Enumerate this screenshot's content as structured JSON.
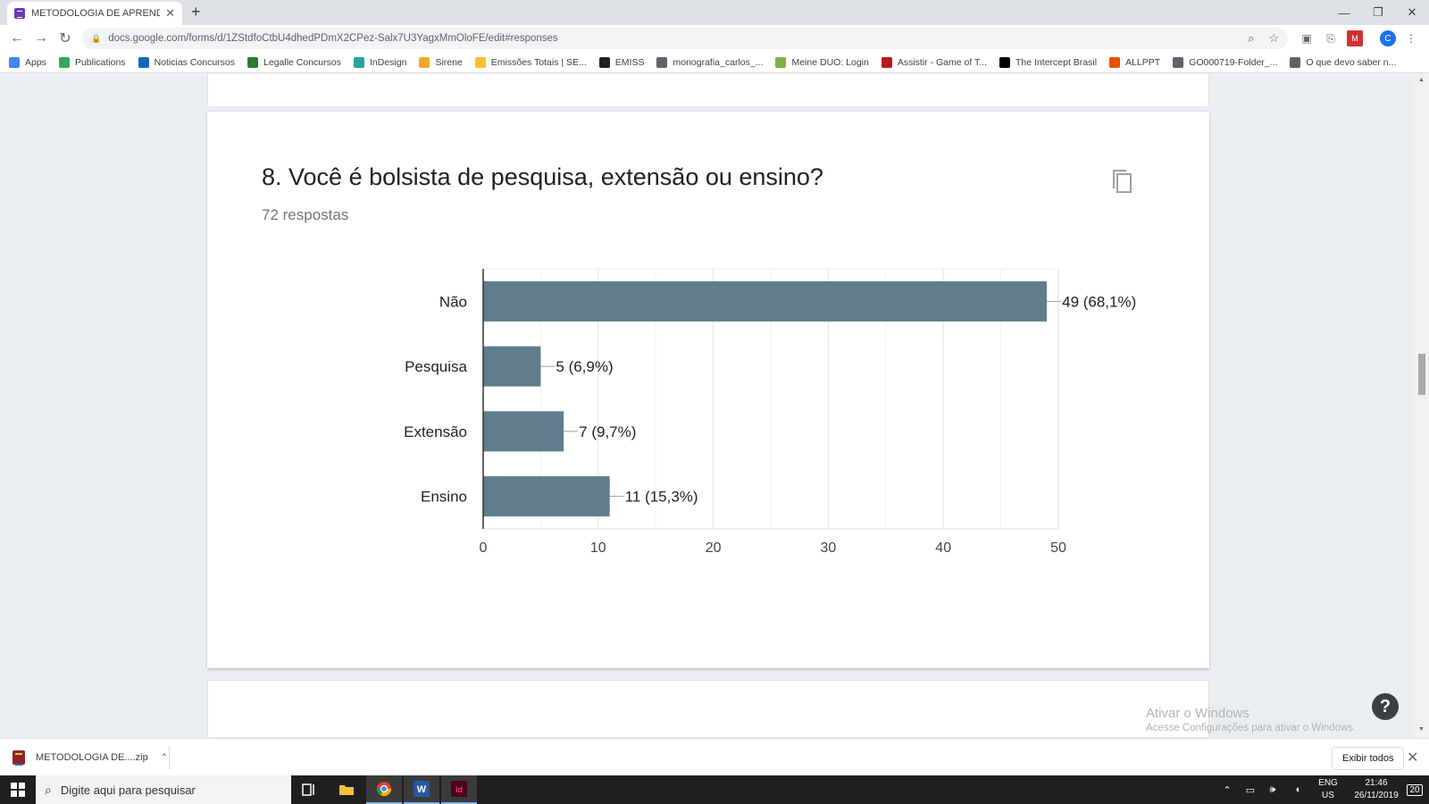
{
  "browser": {
    "tab_title": "METODOLOGIA DE APRENDIZAGEM",
    "url": "docs.google.com/forms/d/1ZStdfoCtbU4dhedPDmX2CPez-Salx7U3YagxMmOloFE/edit#responses",
    "bookmarks": [
      {
        "label": "Apps",
        "color": "#4285f4"
      },
      {
        "label": "Publications",
        "color": "#34a853"
      },
      {
        "label": "Noticias Concursos",
        "color": "#1565c0"
      },
      {
        "label": "Legalle Concursos",
        "color": "#2e7d32"
      },
      {
        "label": "InDesign",
        "color": "#26a69a"
      },
      {
        "label": "Sirene",
        "color": "#f9a825"
      },
      {
        "label": "Emissões Totais | SE...",
        "color": "#fbc02d"
      },
      {
        "label": "EMISS",
        "color": "#212121"
      },
      {
        "label": "monografia_carlos_...",
        "color": "#5f6368"
      },
      {
        "label": "Meine DUO: Login",
        "color": "#7cb342"
      },
      {
        "label": "Assistir - Game of T...",
        "color": "#b71c1c"
      },
      {
        "label": "The Intercept Brasil",
        "color": "#000000"
      },
      {
        "label": "ALLPPT",
        "color": "#e65100"
      },
      {
        "label": "GO000719-Folder_...",
        "color": "#5f6368"
      },
      {
        "label": "O que devo saber n...",
        "color": "#5f6368"
      }
    ]
  },
  "question": {
    "title": "8. Você é bolsista de pesquisa, extensão ou ensino?",
    "responses": "72 respostas"
  },
  "chart_data": {
    "type": "bar",
    "orientation": "horizontal",
    "categories": [
      "Não",
      "Pesquisa",
      "Extensão",
      "Ensino"
    ],
    "values": [
      49,
      5,
      7,
      11
    ],
    "data_labels": [
      "49 (68,1%)",
      "5 (6,9%)",
      "7 (9,7%)",
      "11 (15,3%)"
    ],
    "xticks": [
      "0",
      "10",
      "20",
      "30",
      "40",
      "50"
    ],
    "xlim": [
      0,
      50
    ],
    "bar_color": "#607d8b",
    "grid": true
  },
  "watermark": {
    "line1": "Ativar o Windows",
    "line2": "Acesse Configurações para ativar o Windows."
  },
  "download": {
    "file": "METODOLOGIA DE....zip",
    "show_all": "Exibir todos"
  },
  "taskbar": {
    "search_placeholder": "Digite aqui para pesquisar",
    "lang1": "ENG",
    "lang2": "US",
    "time": "21:46",
    "date": "26/11/2019",
    "notifications": "20"
  }
}
